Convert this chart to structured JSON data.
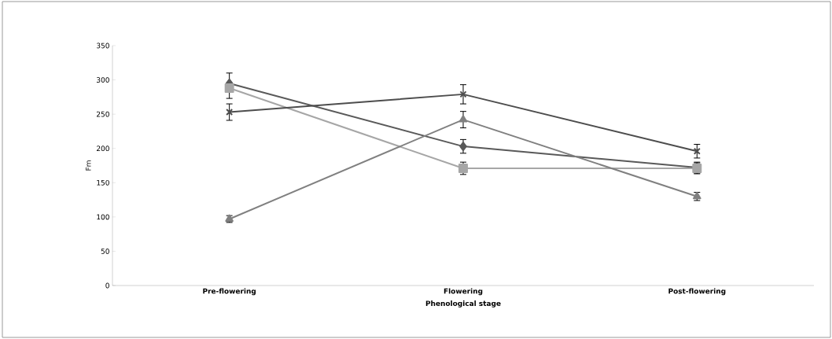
{
  "chart_data": {
    "type": "line",
    "xlabel": "Phenological stage",
    "ylabel": "Fm",
    "categories": [
      "Pre-flowering",
      "Flowering",
      "Post-flowering"
    ],
    "ylim": [
      0,
      350
    ],
    "yticks": [
      0,
      50,
      100,
      150,
      200,
      250,
      300,
      350
    ],
    "grid": false,
    "series": [
      {
        "color": "#595959",
        "marker": "diamond",
        "values": [
          295,
          203,
          172
        ],
        "errors": [
          [
            295,
            310
          ],
          10,
          8
        ]
      },
      {
        "color": "#a6a6a6",
        "marker": "square",
        "values": [
          288,
          171,
          171
        ],
        "errors": [
          [
            273,
            288
          ],
          9,
          8
        ]
      },
      {
        "color": "#808080",
        "marker": "triangle",
        "values": [
          97,
          242,
          130
        ],
        "errors": [
          5,
          12,
          6
        ]
      },
      {
        "color": "#4d4d4d",
        "marker": "cross",
        "values": [
          253,
          279,
          196
        ],
        "errors": [
          12,
          14,
          10
        ]
      }
    ]
  }
}
